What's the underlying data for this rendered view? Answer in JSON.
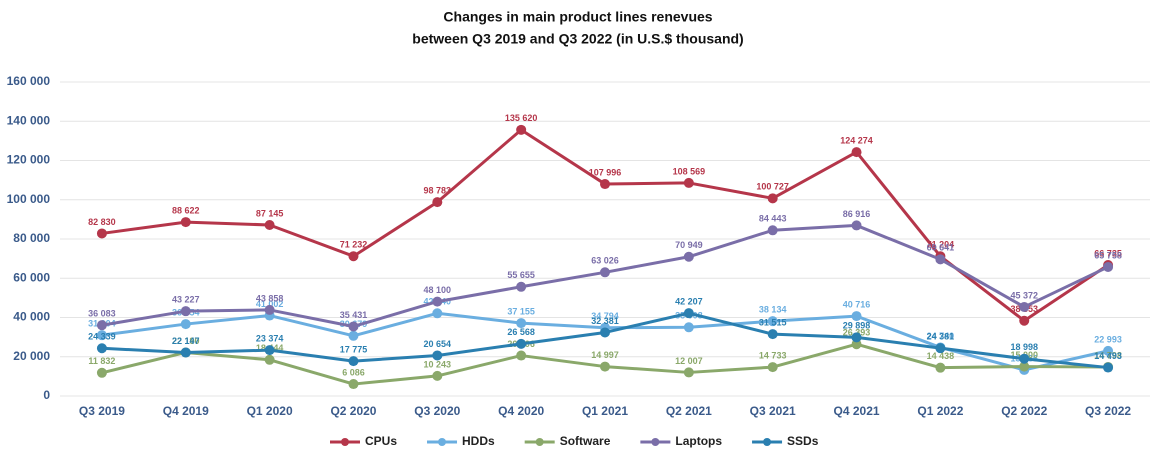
{
  "chart_data": {
    "type": "line",
    "title": "Changes in main product lines renevues",
    "subtitle": "between Q3 2019 and Q3 2022 (in U.S.$ thousand)",
    "categories": [
      "Q3 2019",
      "Q4 2019",
      "Q1 2020",
      "Q2 2020",
      "Q3 2020",
      "Q4 2020",
      "Q1 2021",
      "Q2 2021",
      "Q3 2021",
      "Q4 2021",
      "Q1 2022",
      "Q2 2022",
      "Q3 2022"
    ],
    "ylim": [
      0,
      160000
    ],
    "yticks": [
      0,
      {
        "value": 20000,
        "label": "20 000"
      },
      {
        "value": 40000,
        "label": "40 000"
      },
      {
        "value": 60000,
        "label": "60 000"
      },
      {
        "value": 80000,
        "label": "80 000"
      },
      {
        "value": 100000,
        "label": "100 000"
      },
      {
        "value": 120000,
        "label": "120 000"
      },
      {
        "value": 140000,
        "label": "140 000"
      },
      {
        "value": 160000,
        "label": "160 000"
      }
    ],
    "grid": true,
    "legend": "bottom",
    "series": [
      {
        "name": "CPUs",
        "color": "#b5364a",
        "values": [
          82830,
          88622,
          87145,
          71232,
          98783,
          135620,
          107996,
          108569,
          100727,
          124274,
          71204,
          38353,
          66735
        ],
        "value_labels": [
          "82 830",
          "88 622",
          "87 145",
          "71 232",
          "98 783",
          "135 620",
          "107 996",
          "108 569",
          "100 727",
          "124 274",
          "71 204",
          "38 353",
          "66 735"
        ]
      },
      {
        "name": "HDDs",
        "color": "#6aaee0",
        "values": [
          31004,
          36654,
          41002,
          30679,
          42140,
          37155,
          34794,
          35008,
          38134,
          40716,
          24740,
          13286,
          22993
        ],
        "value_labels": [
          "31 004",
          "36 654",
          "41 002",
          "30 679",
          "42 140",
          "37 155",
          "34 794",
          "35 008",
          "38 134",
          "40 716",
          "24 740",
          "13 286",
          "22 993"
        ]
      },
      {
        "name": "Software",
        "color": "#8aa86a",
        "values": [
          11832,
          22190,
          18444,
          6086,
          10243,
          20606,
          14997,
          12007,
          14733,
          26393,
          14438,
          15000,
          14798
        ],
        "value_labels": [
          "11 832",
          "22 190",
          "18 444",
          "6 086",
          "10 243",
          "20 606",
          "14 997",
          "12 007",
          "14 733",
          "26 393",
          "14 438",
          "15 000",
          "14 798"
        ]
      },
      {
        "name": "Laptops",
        "color": "#7a6ea8",
        "values": [
          36083,
          43227,
          43858,
          35431,
          48100,
          55655,
          63026,
          70949,
          84443,
          86916,
          69641,
          45372,
          65758
        ],
        "value_labels": [
          "36 083",
          "43 227",
          "43 858",
          "35 431",
          "48 100",
          "55 655",
          "63 026",
          "70 949",
          "84 443",
          "86 916",
          "69 641",
          "45 372",
          "65 758"
        ]
      },
      {
        "name": "SSDs",
        "color": "#2a7fb0",
        "values": [
          24339,
          22147,
          23374,
          17775,
          20654,
          26568,
          32381,
          42207,
          31515,
          29898,
          24381,
          18998,
          14493
        ],
        "value_labels": [
          "24 339",
          "22 147",
          "23 374",
          "17 775",
          "20 654",
          "26 568",
          "32 381",
          "42 207",
          "31 515",
          "29 898",
          "24 381",
          "18 998",
          "14 493"
        ]
      }
    ]
  }
}
